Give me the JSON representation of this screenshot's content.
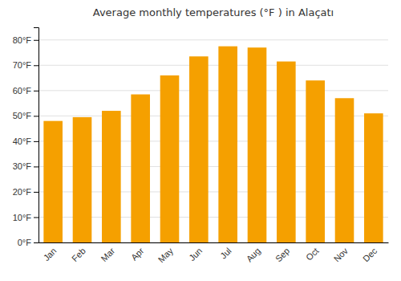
{
  "chart_data": {
    "type": "bar",
    "title": "Average monthly temperatures (°F ) in Alaçatı",
    "categories": [
      "Jan",
      "Feb",
      "Mar",
      "Apr",
      "May",
      "Jun",
      "Jul",
      "Aug",
      "Sep",
      "Oct",
      "Nov",
      "Dec"
    ],
    "values": [
      48,
      49.5,
      52,
      58.5,
      66,
      73.5,
      77.5,
      77,
      71.5,
      64,
      57,
      51
    ],
    "color": "#F5A000",
    "ylim": [
      0,
      85
    ],
    "yticks": [
      {
        "value": 0,
        "label": "0°F"
      },
      {
        "value": 10,
        "label": "10°F"
      },
      {
        "value": 20,
        "label": "20°F"
      },
      {
        "value": 30,
        "label": "30°F"
      },
      {
        "value": 40,
        "label": "40°F"
      },
      {
        "value": 50,
        "label": "50°F"
      },
      {
        "value": 60,
        "label": "60°F"
      },
      {
        "value": 70,
        "label": "70°F"
      },
      {
        "value": 80,
        "label": "80°F"
      }
    ],
    "grid": true
  }
}
